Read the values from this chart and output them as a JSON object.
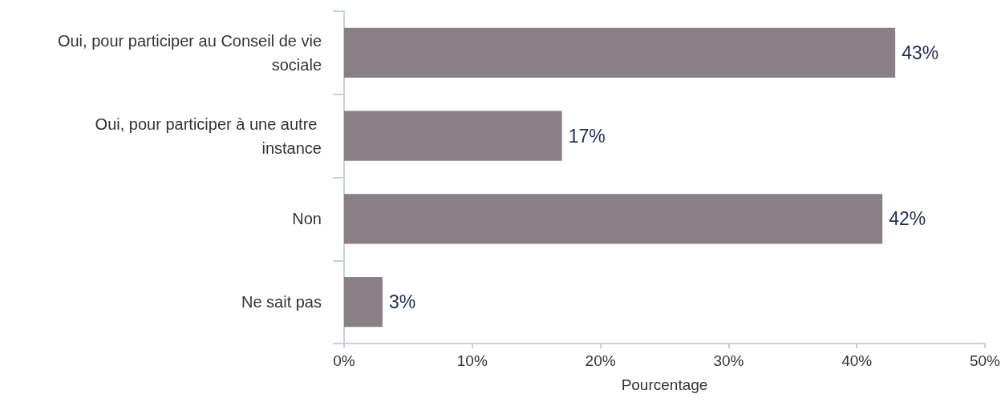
{
  "chart_data": {
    "type": "bar",
    "orientation": "horizontal",
    "categories": [
      "Oui, pour participer au Conseil de vie sociale",
      "Oui, pour participer à une autre instance",
      "Non",
      "Ne sait pas"
    ],
    "values": [
      43,
      17,
      42,
      3
    ],
    "color": "#8a7f84",
    "value_labels": [
      "43%",
      "17%",
      "42%",
      "3%"
    ],
    "xlabel": "Pourcentage",
    "xlim": [
      0,
      50
    ],
    "xticks": [
      {
        "value": 0,
        "label": "0%"
      },
      {
        "value": 10,
        "label": "10%"
      },
      {
        "value": 20,
        "label": "20%"
      },
      {
        "value": 30,
        "label": "30%"
      },
      {
        "value": 40,
        "label": "40%"
      },
      {
        "value": 50,
        "label": "50%"
      }
    ],
    "grid": false
  }
}
